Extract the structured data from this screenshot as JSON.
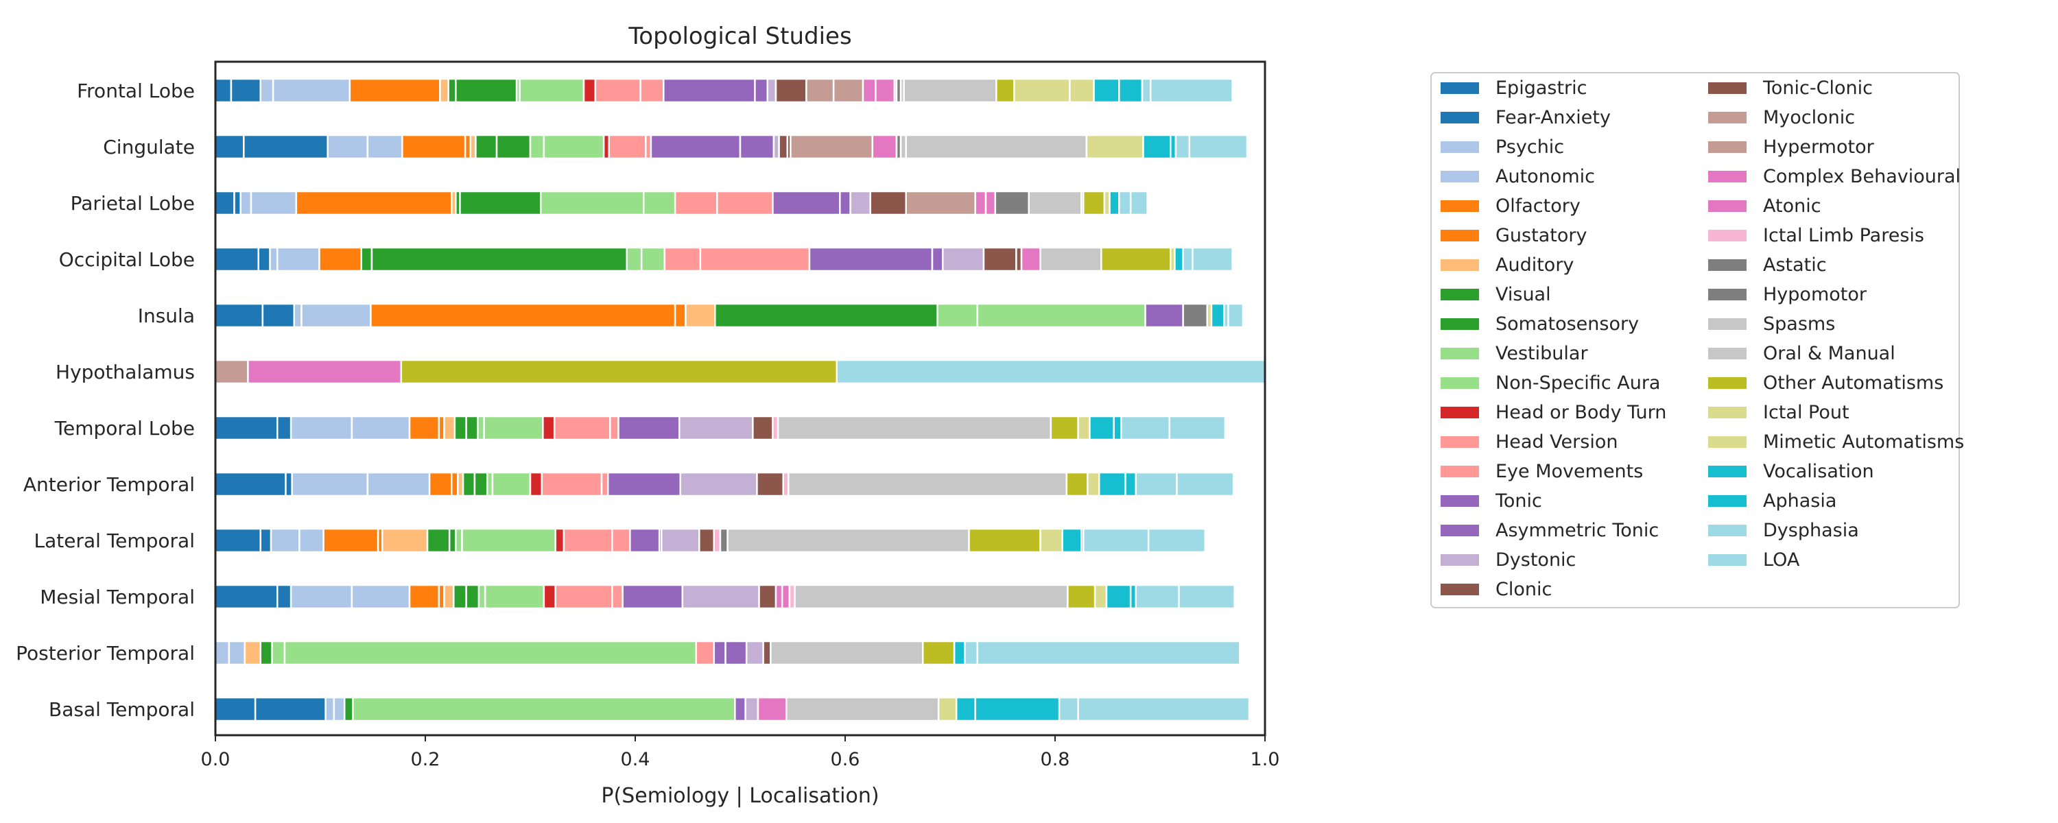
{
  "chart_data": {
    "type": "bar",
    "orientation": "horizontal",
    "stacked": true,
    "normalized": true,
    "title": "Topological Studies",
    "xlabel": "P(Semiology | Localisation)",
    "ylabel": "",
    "xlim": [
      0,
      1.0
    ],
    "xticks": [
      "0.0",
      "0.2",
      "0.4",
      "0.6",
      "0.8",
      "1.0"
    ],
    "grid": false,
    "legend_position": "right",
    "legend_columns": 2,
    "categories": [
      "Frontal Lobe",
      "Cingulate",
      "Parietal Lobe",
      "Occipital Lobe",
      "Insula",
      "Hypothalamus",
      "Temporal Lobe",
      "Anterior Temporal",
      "Lateral Temporal",
      "Mesial Temporal",
      "Posterior Temporal",
      "Basal Temporal"
    ],
    "series": [
      {
        "name": "Epigastric",
        "color": "#1f77b4",
        "values": [
          0.015,
          0.027,
          0.018,
          0.041,
          0.045,
          0,
          0.059,
          0.067,
          0.043,
          0.059,
          0,
          0.038
        ]
      },
      {
        "name": "Fear-Anxiety",
        "color": "#1f77b4",
        "values": [
          0.028,
          0.08,
          0.006,
          0.011,
          0.03,
          0,
          0.013,
          0.006,
          0.01,
          0.013,
          0,
          0.067
        ]
      },
      {
        "name": "Psychic",
        "color": "#aec7e8",
        "values": [
          0.012,
          0.038,
          0.01,
          0.007,
          0.007,
          0,
          0.058,
          0.072,
          0.027,
          0.058,
          0.013,
          0.008
        ]
      },
      {
        "name": "Autonomic",
        "color": "#aec7e8",
        "values": [
          0.073,
          0.033,
          0.043,
          0.04,
          0.066,
          0,
          0.055,
          0.059,
          0.023,
          0.055,
          0.015,
          0.01
        ]
      },
      {
        "name": "Olfactory",
        "color": "#ff7f0e",
        "values": [
          0.086,
          0.06,
          0.148,
          0.04,
          0.29,
          0,
          0.028,
          0.021,
          0.052,
          0.028,
          0,
          0
        ]
      },
      {
        "name": "Gustatory",
        "color": "#ff7f0e",
        "values": [
          0,
          0.005,
          0,
          0,
          0.01,
          0,
          0.005,
          0.006,
          0.004,
          0.005,
          0,
          0
        ]
      },
      {
        "name": "Auditory",
        "color": "#ffbb78",
        "values": [
          0.008,
          0.005,
          0.004,
          0,
          0.028,
          0,
          0.01,
          0.005,
          0.043,
          0.009,
          0.015,
          0
        ]
      },
      {
        "name": "Visual",
        "color": "#2ca02c",
        "values": [
          0.007,
          0.02,
          0.004,
          0.01,
          0.212,
          0,
          0.011,
          0.011,
          0.021,
          0.012,
          0.011,
          0.008
        ]
      },
      {
        "name": "Somatosensory",
        "color": "#2ca02c",
        "values": [
          0.058,
          0.032,
          0.077,
          0.243,
          0,
          0,
          0.011,
          0.012,
          0.006,
          0.012,
          0,
          0
        ]
      },
      {
        "name": "Vestibular",
        "color": "#98df8a",
        "values": [
          0.003,
          0.013,
          0.098,
          0.014,
          0.038,
          0,
          0.006,
          0.005,
          0.006,
          0.006,
          0.012,
          0
        ]
      },
      {
        "name": "Non-Specific Aura",
        "color": "#98df8a",
        "values": [
          0.061,
          0.057,
          0.03,
          0.022,
          0.16,
          0,
          0.056,
          0.036,
          0.089,
          0.056,
          0.392,
          0.364
        ]
      },
      {
        "name": "Head or Body Turn",
        "color": "#d62728",
        "values": [
          0.011,
          0.005,
          0,
          0,
          0,
          0,
          0.011,
          0.011,
          0.008,
          0.011,
          0,
          0
        ]
      },
      {
        "name": "Head Version",
        "color": "#ff9896",
        "values": [
          0.043,
          0.035,
          0.04,
          0.034,
          0,
          0,
          0.053,
          0.057,
          0.046,
          0.054,
          0.017,
          0
        ]
      },
      {
        "name": "Eye Movements",
        "color": "#ff9896",
        "values": [
          0.022,
          0.005,
          0.053,
          0.104,
          0,
          0,
          0.008,
          0.006,
          0.017,
          0.01,
          0,
          0
        ]
      },
      {
        "name": "Tonic",
        "color": "#9467bd",
        "values": [
          0.087,
          0.085,
          0.064,
          0.117,
          0.036,
          0,
          0.058,
          0.069,
          0.028,
          0.057,
          0.011,
          0.01
        ]
      },
      {
        "name": "Asymmetric Tonic",
        "color": "#9467bd",
        "values": [
          0.012,
          0.032,
          0.01,
          0.01,
          0,
          0,
          0,
          0,
          0.002,
          0,
          0.02,
          0
        ]
      },
      {
        "name": "Dystonic",
        "color": "#c5b0d5",
        "values": [
          0.008,
          0.005,
          0.019,
          0.039,
          0,
          0,
          0.07,
          0.073,
          0.036,
          0.073,
          0.016,
          0.012
        ]
      },
      {
        "name": "Clonic",
        "color": "#8c564b",
        "values": [
          0.029,
          0.008,
          0.034,
          0.031,
          0,
          0,
          0.019,
          0.025,
          0.014,
          0.016,
          0,
          0
        ]
      },
      {
        "name": "Tonic-Clonic",
        "color": "#8c564b",
        "values": [
          0,
          0.003,
          0,
          0.005,
          0,
          0,
          0,
          0,
          0,
          0,
          0.007,
          0
        ]
      },
      {
        "name": "Myoclonic",
        "color": "#c49c94",
        "values": [
          0.026,
          0.078,
          0.066,
          0,
          0,
          0.031,
          0,
          0,
          0,
          0,
          0,
          0
        ]
      },
      {
        "name": "Hypermotor",
        "color": "#c49c94",
        "values": [
          0.028,
          0,
          0,
          0,
          0,
          0,
          0,
          0,
          0,
          0,
          0,
          0
        ]
      },
      {
        "name": "Complex Behavioural",
        "color": "#e377c2",
        "values": [
          0.012,
          0.023,
          0.01,
          0.018,
          0,
          0,
          0,
          0,
          0,
          0.006,
          0,
          0.027
        ]
      },
      {
        "name": "Atonic",
        "color": "#e377c2",
        "values": [
          0.018,
          0,
          0.009,
          0,
          0,
          0.146,
          0,
          0,
          0,
          0.007,
          0,
          0
        ]
      },
      {
        "name": "Ictal Limb Paresis",
        "color": "#f7b6d2",
        "values": [
          0.002,
          0,
          0,
          0,
          0,
          0,
          0.005,
          0.005,
          0.006,
          0.005,
          0,
          0
        ]
      },
      {
        "name": "Astatic",
        "color": "#7f7f7f",
        "values": [
          0,
          0,
          0.032,
          0,
          0.023,
          0,
          0,
          0,
          0.007,
          0,
          0,
          0
        ]
      },
      {
        "name": "Hypomotor",
        "color": "#7f7f7f",
        "values": [
          0.004,
          0.004,
          0,
          0,
          0,
          0,
          0,
          0,
          0,
          0,
          0,
          0
        ]
      },
      {
        "name": "Spasms",
        "color": "#c7c7c7",
        "values": [
          0.003,
          0.005,
          0.05,
          0,
          0,
          0,
          0,
          0,
          0,
          0,
          0,
          0
        ]
      },
      {
        "name": "Oral & Manual",
        "color": "#c7c7c7",
        "values": [
          0.088,
          0.172,
          0.002,
          0.058,
          0,
          0,
          0.26,
          0.265,
          0.23,
          0.26,
          0.145,
          0.145
        ]
      },
      {
        "name": "Other Automatisms",
        "color": "#bcbd22",
        "values": [
          0.017,
          0,
          0.02,
          0.066,
          0,
          0.415,
          0.026,
          0.02,
          0.068,
          0.026,
          0.03,
          0
        ]
      },
      {
        "name": "Ictal Pout",
        "color": "#dbdb8d",
        "values": [
          0.053,
          0.054,
          0.005,
          0.004,
          0.004,
          0,
          0.011,
          0.011,
          0.021,
          0.011,
          0,
          0
        ]
      },
      {
        "name": "Mimetic Automatisms",
        "color": "#dbdb8d",
        "values": [
          0.023,
          0,
          0,
          0,
          0,
          0,
          0,
          0,
          0,
          0,
          0,
          0.017
        ]
      },
      {
        "name": "Vocalisation",
        "color": "#17becf",
        "values": [
          0.024,
          0.026,
          0.009,
          0.008,
          0.012,
          0,
          0.023,
          0.025,
          0.018,
          0.023,
          0.01,
          0.018
        ]
      },
      {
        "name": "Aphasia",
        "color": "#17becf",
        "values": [
          0.022,
          0.005,
          0,
          0,
          0,
          0,
          0.007,
          0.01,
          0.002,
          0.005,
          0,
          0.08
        ]
      },
      {
        "name": "Dysphasia",
        "color": "#9edae5",
        "values": [
          0.008,
          0.013,
          0.011,
          0.009,
          0.004,
          0,
          0.046,
          0.039,
          0.062,
          0.041,
          0.012,
          0.018
        ]
      },
      {
        "name": "LOA",
        "color": "#9edae5",
        "values": [
          0.078,
          0.055,
          0.016,
          0.038,
          0.014,
          0.408,
          0.053,
          0.054,
          0.054,
          0.053,
          0.25,
          0.163
        ]
      }
    ]
  }
}
